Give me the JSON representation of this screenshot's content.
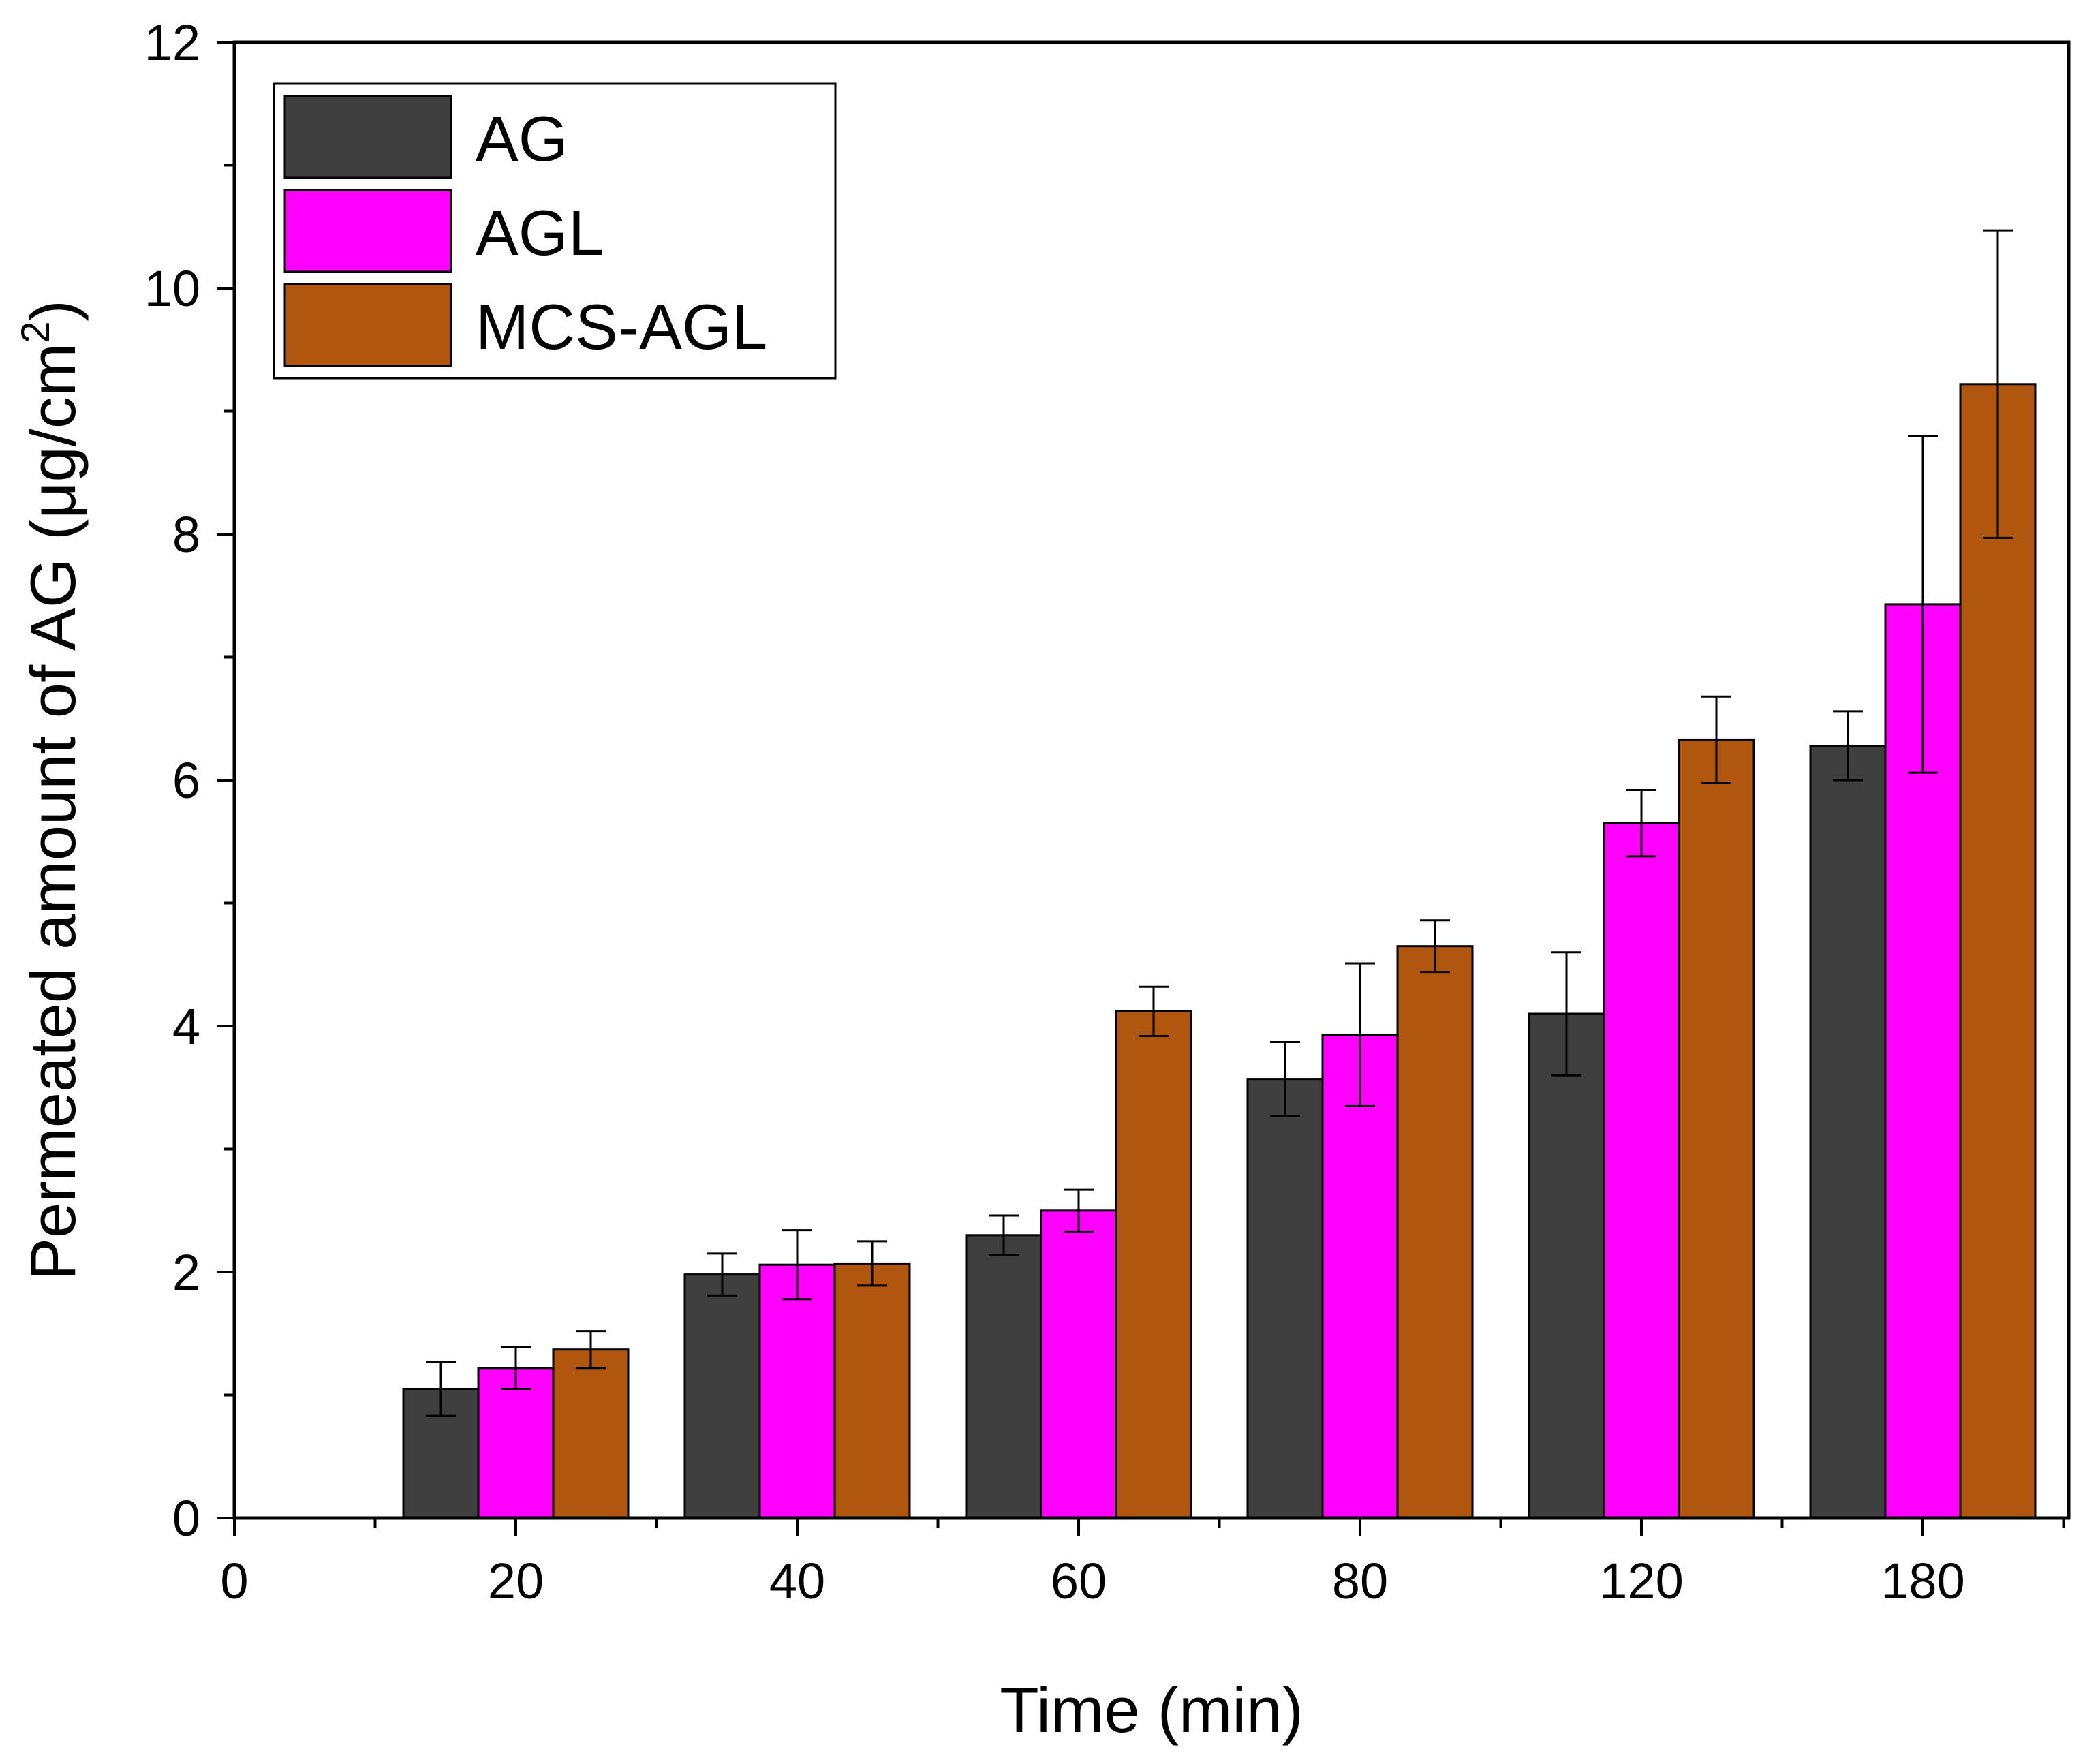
{
  "chart_data": {
    "type": "bar",
    "title": "",
    "xlabel": "Time (min)",
    "ylabel": {
      "main": "Permeated amount of AG (μg/cm",
      "superscript": "2",
      "close": ")"
    },
    "ylim": [
      0,
      12
    ],
    "yticks": [
      "0",
      "2",
      "4",
      "6",
      "8",
      "10",
      "12"
    ],
    "x_axis_start_label": "0",
    "categories": [
      "20",
      "40",
      "60",
      "80",
      "120",
      "180"
    ],
    "series": [
      {
        "name": "AG",
        "color": "#3f3f3f",
        "values": [
          1.05,
          1.98,
          2.3,
          3.57,
          4.1,
          6.28
        ],
        "errors": [
          0.22,
          0.17,
          0.16,
          0.3,
          0.5,
          0.28
        ]
      },
      {
        "name": "AGL",
        "color": "#ff00ff",
        "values": [
          1.22,
          2.06,
          2.5,
          3.93,
          5.65,
          7.43
        ],
        "errors": [
          0.17,
          0.28,
          0.17,
          0.58,
          0.27,
          1.37
        ]
      },
      {
        "name": "MCS-AGL",
        "color": "#b0560f",
        "values": [
          1.37,
          2.07,
          4.12,
          4.65,
          6.33,
          9.22
        ],
        "errors": [
          0.15,
          0.18,
          0.2,
          0.21,
          0.35,
          1.25
        ]
      }
    ],
    "legend_position": "top-left",
    "grid": false
  }
}
